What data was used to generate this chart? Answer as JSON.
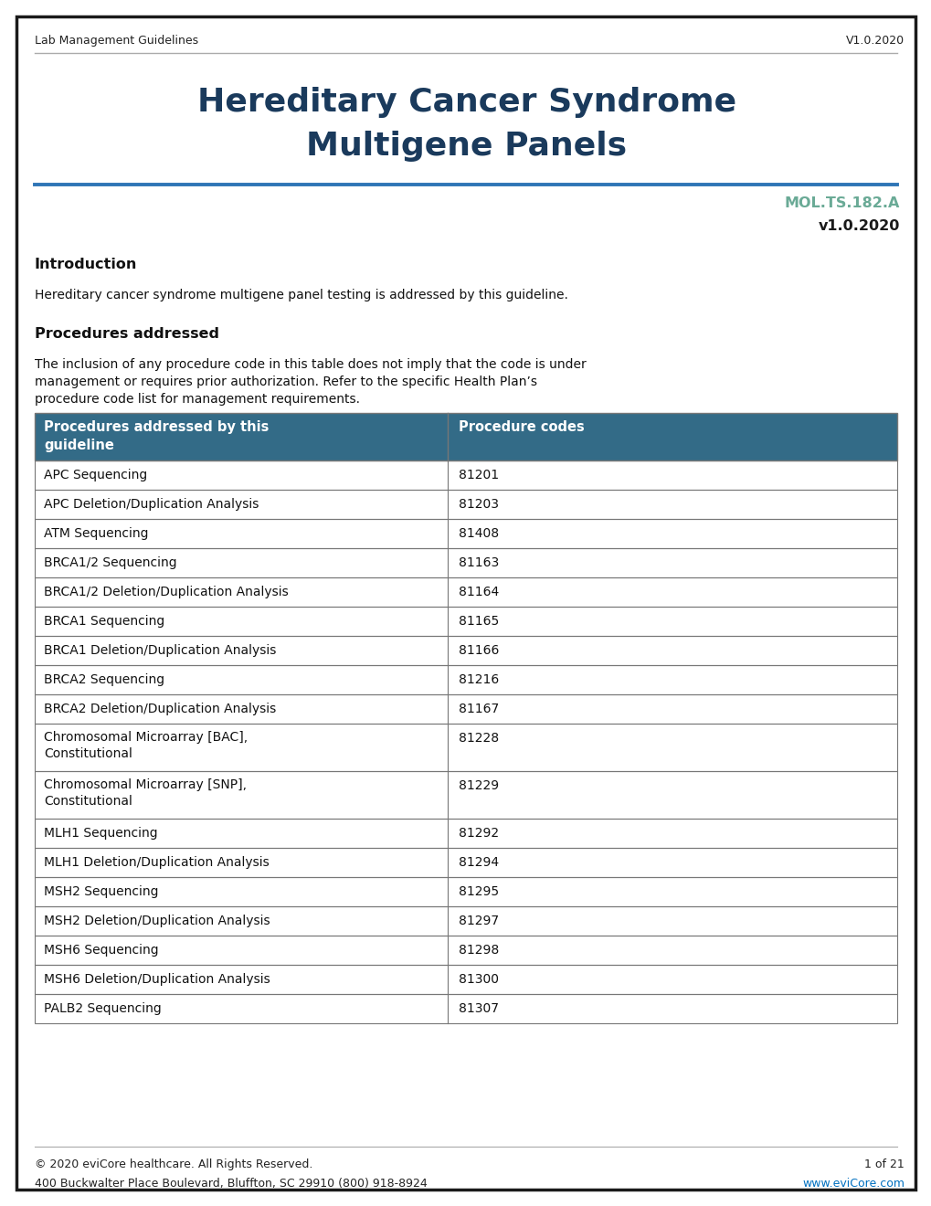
{
  "page_border_color": "#1a1a1a",
  "background_color": "#ffffff",
  "header_left": "Lab Management Guidelines",
  "header_right": "V1.0.2020",
  "header_line_color": "#aaaaaa",
  "title_line1": "Hereditary Cancer Syndrome",
  "title_line2": "Multigene Panels",
  "title_color": "#1a3a5c",
  "blue_line_color": "#2e75b6",
  "code_label": "MOL.TS.182.A",
  "code_label_color": "#6aaa96",
  "version_label": "v1.0.2020",
  "version_color": "#1a1a1a",
  "intro_heading": "Introduction",
  "intro_text": "Hereditary cancer syndrome multigene panel testing is addressed by this guideline.",
  "proc_heading": "Procedures addressed",
  "proc_lines": [
    "The inclusion of any procedure code in this table does not imply that the code is under",
    "management or requires prior authorization. Refer to the specific Health Plan’s",
    "procedure code list for management requirements."
  ],
  "table_header_bg": "#336b87",
  "table_header_text_color": "#ffffff",
  "table_col1_header_line1": "Procedures addressed by this",
  "table_col1_header_line2": "guideline",
  "table_col2_header": "Procedure codes",
  "table_border_color": "#777777",
  "table_rows": [
    [
      "APC Sequencing",
      "81201"
    ],
    [
      "APC Deletion/Duplication Analysis",
      "81203"
    ],
    [
      "ATM Sequencing",
      "81408"
    ],
    [
      "BRCA1/2 Sequencing",
      "81163"
    ],
    [
      "BRCA1/2 Deletion/Duplication Analysis",
      "81164"
    ],
    [
      "BRCA1 Sequencing",
      "81165"
    ],
    [
      "BRCA1 Deletion/Duplication Analysis",
      "81166"
    ],
    [
      "BRCA2 Sequencing",
      "81216"
    ],
    [
      "BRCA2 Deletion/Duplication Analysis",
      "81167"
    ],
    [
      "Chromosomal Microarray [BAC],\nConstitutional",
      "81228"
    ],
    [
      "Chromosomal Microarray [SNP],\nConstitutional",
      "81229"
    ],
    [
      "MLH1 Sequencing",
      "81292"
    ],
    [
      "MLH1 Deletion/Duplication Analysis",
      "81294"
    ],
    [
      "MSH2 Sequencing",
      "81295"
    ],
    [
      "MSH2 Deletion/Duplication Analysis",
      "81297"
    ],
    [
      "MSH6 Sequencing",
      "81298"
    ],
    [
      "MSH6 Deletion/Duplication Analysis",
      "81300"
    ],
    [
      "PALB2 Sequencing",
      "81307"
    ]
  ],
  "footer_line_color": "#aaaaaa",
  "footer_left1": "© 2020 eviCore healthcare. All Rights Reserved.",
  "footer_left2": "400 Buckwalter Place Boulevard, Bluffton, SC 29910 (800) 918-8924",
  "footer_right1": "1 of 21",
  "footer_right2": "www.eviCore.com",
  "footer_link_color": "#0070c0"
}
